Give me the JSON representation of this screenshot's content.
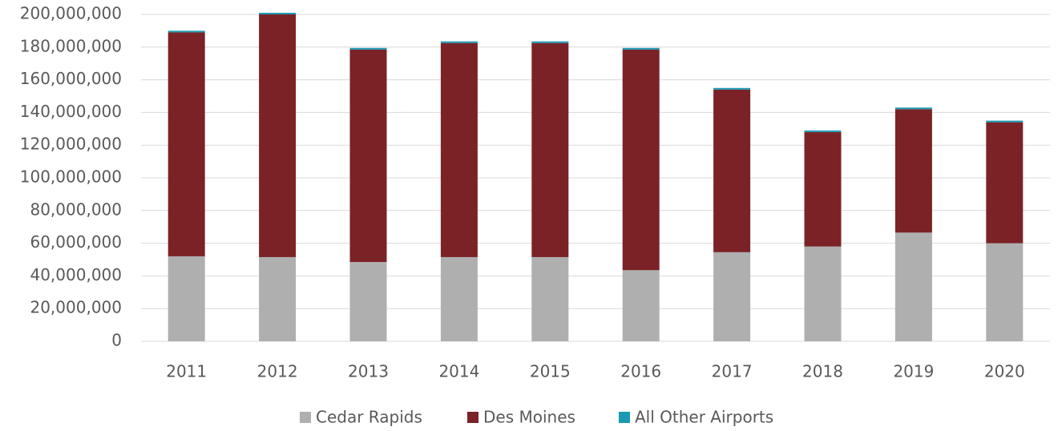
{
  "chart_data": {
    "type": "stacked_bar",
    "categories": [
      "2011",
      "2012",
      "2013",
      "2014",
      "2015",
      "2016",
      "2017",
      "2018",
      "2019",
      "2020"
    ],
    "series": [
      {
        "name": "Cedar Rapids",
        "color": "#afafaf",
        "values": [
          52000000,
          51500000,
          48500000,
          51500000,
          51500000,
          43500000,
          54500000,
          58000000,
          66500000,
          60000000
        ]
      },
      {
        "name": "Des Moines",
        "color": "#7b2226",
        "values": [
          137000000,
          148500000,
          130000000,
          131000000,
          131000000,
          135000000,
          99500000,
          70000000,
          75500000,
          74000000
        ]
      },
      {
        "name": "All Other Airports",
        "color": "#1b9ab3",
        "values": [
          1000000,
          1000000,
          1000000,
          1000000,
          1000000,
          1000000,
          1000000,
          1000000,
          1000000,
          1000000
        ]
      }
    ],
    "ylim": [
      0,
      200000000
    ],
    "yticks": [
      0,
      {
        "value": 20000000,
        "label": "20,000,000"
      },
      {
        "value": 40000000,
        "label": "40,000,000"
      },
      {
        "value": 60000000,
        "label": "60,000,000"
      },
      {
        "value": 80000000,
        "label": "80,000,000"
      },
      {
        "value": 100000000,
        "label": "100,000,000"
      },
      {
        "value": 120000000,
        "label": "120,000,000"
      },
      {
        "value": 140000000,
        "label": "140,000,000"
      },
      {
        "value": 160000000,
        "label": "160,000,000"
      },
      {
        "value": 180000000,
        "label": "180,000,000"
      },
      {
        "value": 200000000,
        "label": "200,000,000"
      }
    ],
    "grid": true,
    "legend": "bottom"
  }
}
